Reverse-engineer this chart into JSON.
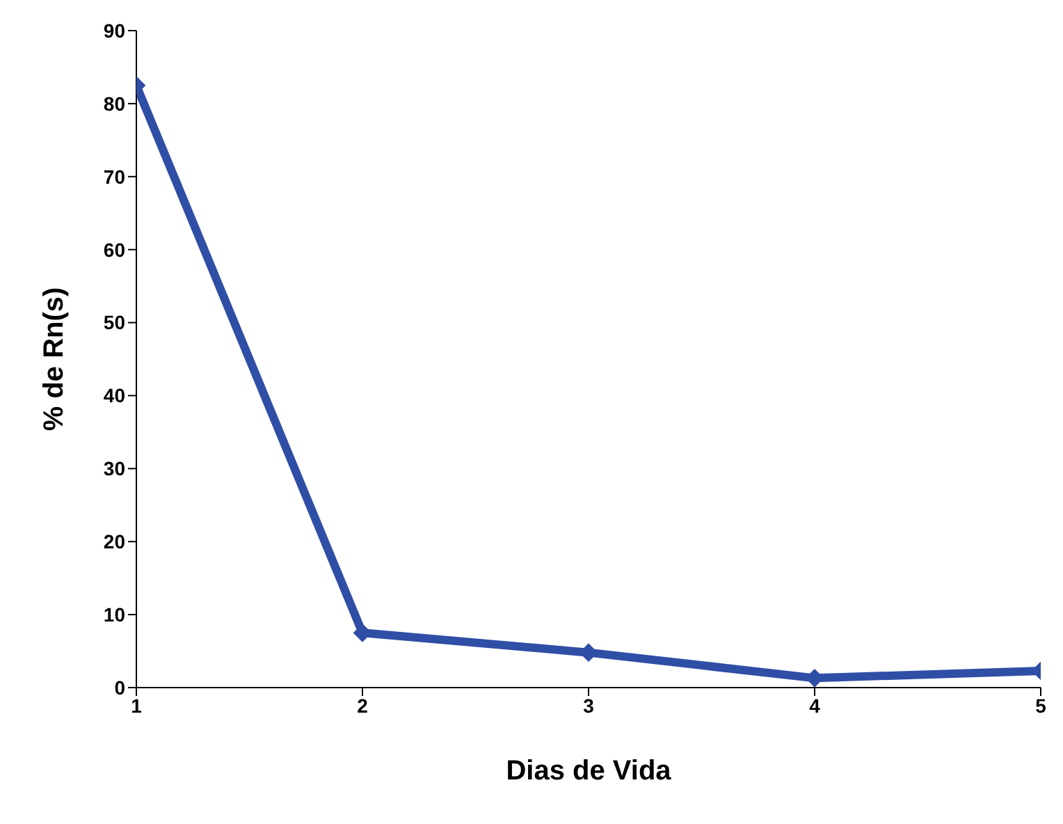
{
  "chart_data": {
    "type": "line",
    "xlabel": "Dias de Vida",
    "ylabel": "% de Rn(s)",
    "x": [
      1,
      2,
      3,
      4,
      5
    ],
    "series": [
      {
        "color": "#2f4ea6",
        "values": [
          82.5,
          7.5,
          4.8,
          1.3,
          2.3
        ]
      }
    ],
    "xlim": [
      1,
      5
    ],
    "xticks": [
      1,
      2,
      3,
      4,
      5
    ],
    "ylim": [
      0,
      90
    ],
    "yticks": [
      0,
      10,
      20,
      30,
      40,
      50,
      60,
      70,
      80,
      90
    ],
    "grid": false,
    "legend": false,
    "marker": "diamond",
    "line_style": "solid"
  }
}
